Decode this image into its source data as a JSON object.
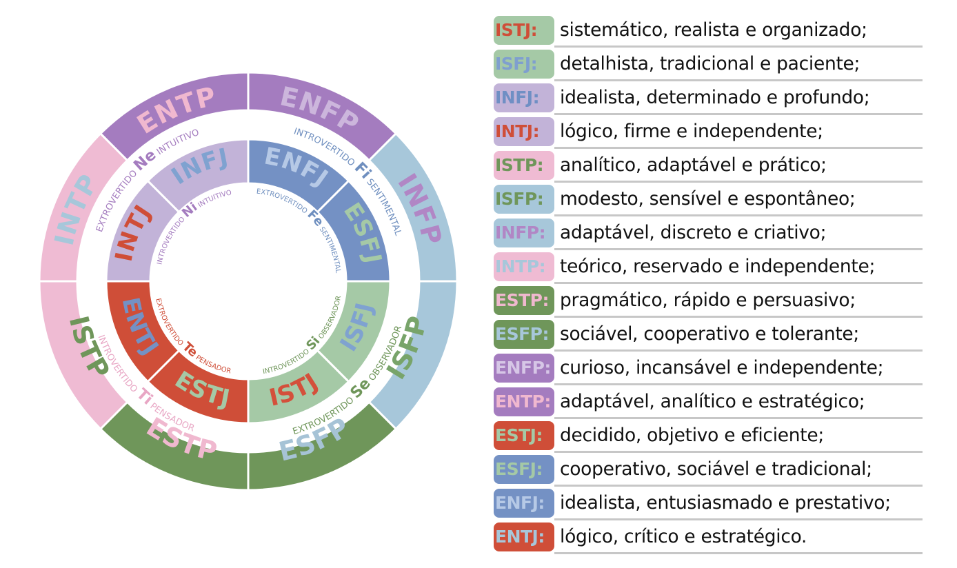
{
  "wheel": {
    "outer": [
      {
        "label": "ENFP",
        "fill": "#a47cbf",
        "text": "#ccb6dc"
      },
      {
        "label": "INFP",
        "fill": "#a7c7da",
        "text": "#b186c5"
      },
      {
        "label": "ISFP",
        "fill": "#a7c7da",
        "text": "#78a46a"
      },
      {
        "label": "ESFP",
        "fill": "#6f965a",
        "text": "#a6c3d6"
      },
      {
        "label": "ESTP",
        "fill": "#6f965a",
        "text": "#f0b8cf"
      },
      {
        "label": "ISTP",
        "fill": "#efbbd3",
        "text": "#6f965a"
      },
      {
        "label": "INTP",
        "fill": "#efbbd3",
        "text": "#a7c7da"
      },
      {
        "label": "ENTP",
        "fill": "#a47cbf",
        "text": "#f0b8cf"
      }
    ],
    "middle_labels": [
      {
        "label": "INTROVERTIDO",
        "func": "Fi",
        "sub": "SENTIMENTAL",
        "color": "#6f8fbf"
      },
      {
        "label": "EXTROVERTIDO",
        "func": "Se",
        "sub": "OBSERVADOR",
        "color": "#6f965a"
      },
      {
        "label": "INTROVERTIDO",
        "func": "Ti",
        "sub": "PENSADOR",
        "color": "#e8a6c4"
      },
      {
        "label": "EXTROVERTIDO",
        "func": "Ne",
        "sub": "INTUITIVO",
        "color": "#a47cbf"
      }
    ],
    "inner": [
      {
        "label": "ENFJ",
        "fill": "#7491c4",
        "text": "#b6c9e6"
      },
      {
        "label": "ESFJ",
        "fill": "#7491c4",
        "text": "#a5c9a6"
      },
      {
        "label": "ISFJ",
        "fill": "#a5c9a6",
        "text": "#7fa2d0"
      },
      {
        "label": "ISTJ",
        "fill": "#a5c9a6",
        "text": "#d4503b"
      },
      {
        "label": "ESTJ",
        "fill": "#cf4e38",
        "text": "#a5c9a6"
      },
      {
        "label": "ENTJ",
        "fill": "#cf4e38",
        "text": "#7491c4"
      },
      {
        "label": "INTJ",
        "fill": "#c2b3d8",
        "text": "#cf4e38"
      },
      {
        "label": "INFJ",
        "fill": "#c2b3d8",
        "text": "#7fa2d0"
      }
    ],
    "inner_labels": [
      {
        "label": "EXTROVERTIDO",
        "func": "Fe",
        "sub": "SENTIMENTAL",
        "color": "#6f8fbf"
      },
      {
        "label": "INTROVERTIDO",
        "func": "Si",
        "sub": "OBSERVADOR",
        "color": "#6f965a"
      },
      {
        "label": "EXTROVERTIDO",
        "func": "Te",
        "sub": "PENSADOR",
        "color": "#cf4e38"
      },
      {
        "label": "INTROVERTIDO",
        "func": "Ni",
        "sub": "INTUITIVO",
        "color": "#a47cbf"
      }
    ]
  },
  "legend": [
    {
      "type": "ISTJ:",
      "badge": "#a5c9a6",
      "text": "#cf4e38",
      "desc": "sistemático, realista e organizado;"
    },
    {
      "type": "ISFJ:",
      "badge": "#a5c9a6",
      "text": "#7f9fcf",
      "desc": "detalhista, tradicional e paciente;"
    },
    {
      "type": "INFJ:",
      "badge": "#c2b3d8",
      "text": "#6f8fc4",
      "desc": "idealista, determinado e profundo;"
    },
    {
      "type": "INTJ:",
      "badge": "#c2b3d8",
      "text": "#cf4e38",
      "desc": "lógico, firme e independente;"
    },
    {
      "type": "ISTP:",
      "badge": "#efbbd3",
      "text": "#6f965a",
      "desc": "analítico, adaptável e prático;"
    },
    {
      "type": "ISFP:",
      "badge": "#a7c7da",
      "text": "#6f965a",
      "desc": "modesto, sensível e espontâneo;"
    },
    {
      "type": "INFP:",
      "badge": "#a7c7da",
      "text": "#b186c5",
      "desc": "adaptável, discreto e criativo;"
    },
    {
      "type": "INTP:",
      "badge": "#efbbd3",
      "text": "#a7c7da",
      "desc": "teórico, reservado e independente;"
    },
    {
      "type": "ESTP:",
      "badge": "#6f965a",
      "text": "#f0b8cf",
      "desc": "pragmático, rápido e persuasivo;"
    },
    {
      "type": "ESFP:",
      "badge": "#6f965a",
      "text": "#a7c7da",
      "desc": "sociável, cooperativo e tolerante;"
    },
    {
      "type": "ENFP:",
      "badge": "#a47cbf",
      "text": "#d6c6e6",
      "desc": "curioso, incansável e independente;"
    },
    {
      "type": "ENTP:",
      "badge": "#a47cbf",
      "text": "#f0b8cf",
      "desc": "adaptável, analítico e estratégico;"
    },
    {
      "type": "ESTJ:",
      "badge": "#cf4e38",
      "text": "#a5c9a6",
      "desc": "decidido, objetivo e eficiente;"
    },
    {
      "type": "ESFJ:",
      "badge": "#7491c4",
      "text": "#a5c9a6",
      "desc": "cooperativo, sociável e tradicional;"
    },
    {
      "type": "ENFJ:",
      "badge": "#7491c4",
      "text": "#b6c9e6",
      "desc": "idealista, entusiasmado e prestativo;"
    },
    {
      "type": "ENTJ:",
      "badge": "#cf4e38",
      "text": "#a7c7da",
      "desc": "lógico, crítico e estratégico."
    }
  ]
}
